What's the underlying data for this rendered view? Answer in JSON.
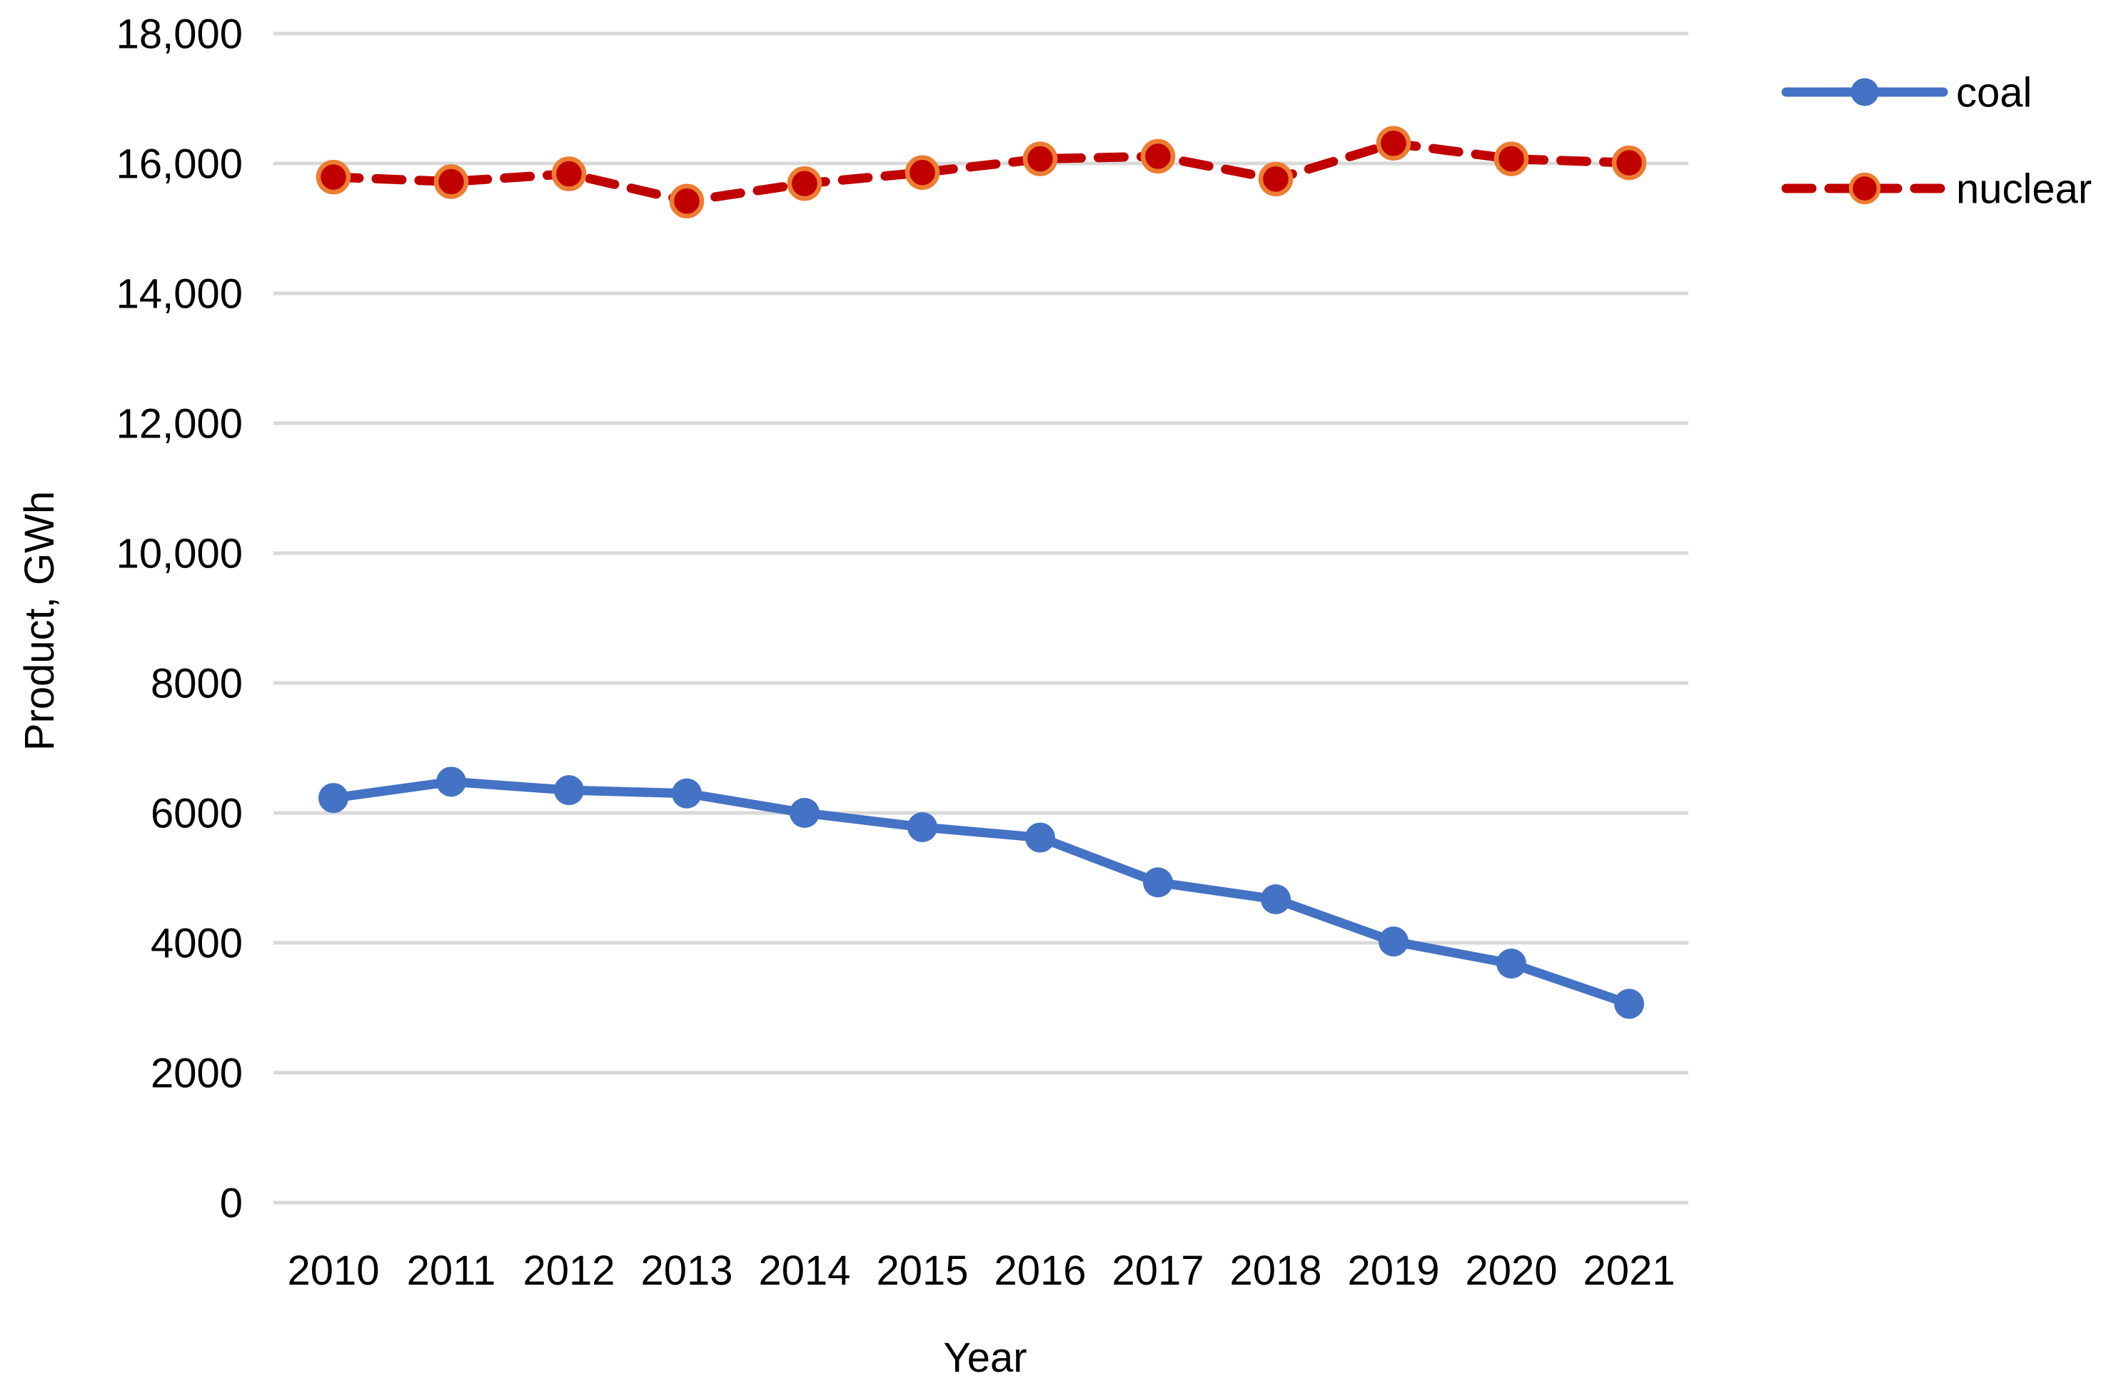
{
  "chart_data": {
    "type": "line",
    "title": "",
    "xlabel": "Year",
    "ylabel": "Product, GWh",
    "categories": [
      "2010",
      "2011",
      "2012",
      "2013",
      "2014",
      "2015",
      "2016",
      "2017",
      "2018",
      "2019",
      "2020",
      "2021"
    ],
    "series": [
      {
        "name": "coal",
        "values": [
          6230,
          6480,
          6350,
          6300,
          6000,
          5780,
          5620,
          4930,
          4670,
          4020,
          3680,
          3060
        ],
        "color": "#4472C4",
        "line_style": "solid",
        "marker": "circle",
        "marker_fill": "#4472C4",
        "marker_border": "none"
      },
      {
        "name": "nuclear",
        "values": [
          15790,
          15720,
          15840,
          15420,
          15690,
          15860,
          16070,
          16110,
          15760,
          16310,
          16070,
          16010
        ],
        "color": "#C00000",
        "line_style": "dashed",
        "marker": "circle",
        "marker_fill": "#C00000",
        "marker_border": "#ED7D31"
      }
    ],
    "ylim": [
      0,
      18000
    ],
    "ytick_values": [
      0,
      2000,
      4000,
      6000,
      8000,
      10000,
      12000,
      14000,
      16000,
      18000
    ],
    "ytick_labels": [
      "0",
      "2000",
      "4000",
      "6000",
      "8000",
      "10,000",
      "12,000",
      "14,000",
      "16,000",
      "18,000"
    ],
    "grid": "horizontal",
    "gridline_color": "#D9D9D9",
    "background": "#FFFFFF",
    "text_color": "#000000",
    "legend_position": "top-right",
    "legend": [
      {
        "label": "coal"
      },
      {
        "label": "nuclear"
      }
    ]
  }
}
